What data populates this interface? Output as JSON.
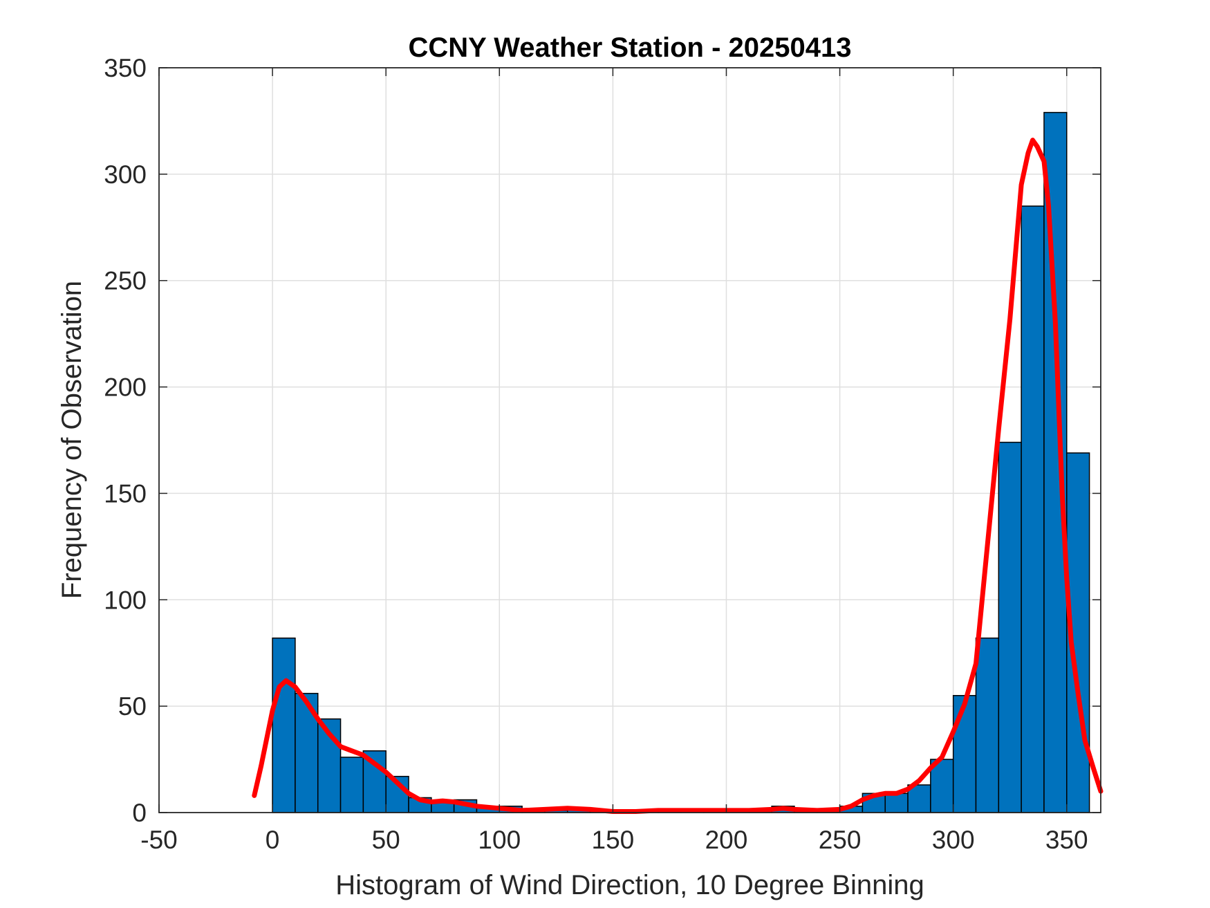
{
  "chart_data": {
    "type": "bar",
    "title": "CCNY Weather Station - 20250413",
    "xlabel": "Histogram of Wind Direction, 10 Degree Binning",
    "ylabel": "Frequency of Observation",
    "xlim": [
      -50,
      365
    ],
    "ylim": [
      0,
      350
    ],
    "xticks": [
      -50,
      0,
      50,
      100,
      150,
      200,
      250,
      300,
      350
    ],
    "yticks": [
      0,
      50,
      100,
      150,
      200,
      250,
      300,
      350
    ],
    "grid": true,
    "bin_width": 10,
    "bins": [
      {
        "start": 0,
        "value": 82
      },
      {
        "start": 10,
        "value": 56
      },
      {
        "start": 20,
        "value": 44
      },
      {
        "start": 30,
        "value": 26
      },
      {
        "start": 40,
        "value": 29
      },
      {
        "start": 50,
        "value": 17
      },
      {
        "start": 60,
        "value": 7
      },
      {
        "start": 70,
        "value": 5
      },
      {
        "start": 80,
        "value": 6
      },
      {
        "start": 90,
        "value": 3
      },
      {
        "start": 100,
        "value": 3
      },
      {
        "start": 110,
        "value": 1
      },
      {
        "start": 120,
        "value": 1
      },
      {
        "start": 130,
        "value": 2
      },
      {
        "start": 140,
        "value": 1
      },
      {
        "start": 150,
        "value": 0
      },
      {
        "start": 160,
        "value": 1
      },
      {
        "start": 170,
        "value": 1
      },
      {
        "start": 180,
        "value": 1
      },
      {
        "start": 190,
        "value": 1
      },
      {
        "start": 200,
        "value": 1
      },
      {
        "start": 210,
        "value": 1
      },
      {
        "start": 220,
        "value": 3
      },
      {
        "start": 230,
        "value": 1
      },
      {
        "start": 240,
        "value": 1
      },
      {
        "start": 250,
        "value": 3
      },
      {
        "start": 260,
        "value": 9
      },
      {
        "start": 270,
        "value": 9
      },
      {
        "start": 280,
        "value": 13
      },
      {
        "start": 290,
        "value": 25
      },
      {
        "start": 300,
        "value": 55
      },
      {
        "start": 310,
        "value": 82
      },
      {
        "start": 320,
        "value": 174
      },
      {
        "start": 330,
        "value": 285
      },
      {
        "start": 340,
        "value": 329
      },
      {
        "start": 350,
        "value": 169
      }
    ],
    "density_curve": {
      "x": [
        -8,
        -5,
        0,
        3,
        6,
        10,
        15,
        20,
        25,
        30,
        35,
        40,
        45,
        50,
        55,
        60,
        65,
        70,
        75,
        80,
        85,
        90,
        100,
        110,
        120,
        130,
        140,
        150,
        160,
        170,
        180,
        190,
        200,
        210,
        220,
        225,
        230,
        240,
        250,
        255,
        260,
        265,
        270,
        275,
        280,
        285,
        290,
        295,
        300,
        305,
        310,
        315,
        320,
        325,
        330,
        333,
        335,
        337,
        340,
        342,
        345,
        348,
        350,
        352,
        355,
        358,
        362,
        365
      ],
      "y": [
        8,
        22,
        48,
        59,
        62,
        59,
        52,
        44,
        37,
        31,
        29,
        27,
        23,
        19,
        14,
        9,
        6,
        5,
        5.5,
        5,
        4,
        3,
        2,
        1,
        1.5,
        2,
        1.5,
        0.5,
        0.5,
        1,
        1,
        1,
        1,
        1,
        1.5,
        2,
        1.5,
        1,
        1.5,
        3,
        6,
        8,
        9,
        9,
        11,
        15,
        21,
        26,
        38,
        51,
        70,
        125,
        180,
        232,
        295,
        310,
        316,
        313,
        306,
        285,
        230,
        150,
        110,
        80,
        56,
        34,
        20,
        10
      ]
    },
    "colors": {
      "bar_fill": "#0072bd",
      "bar_edge": "#000000",
      "curve": "#ff0000",
      "grid": "#dfdfdf",
      "axis": "#262626"
    }
  }
}
